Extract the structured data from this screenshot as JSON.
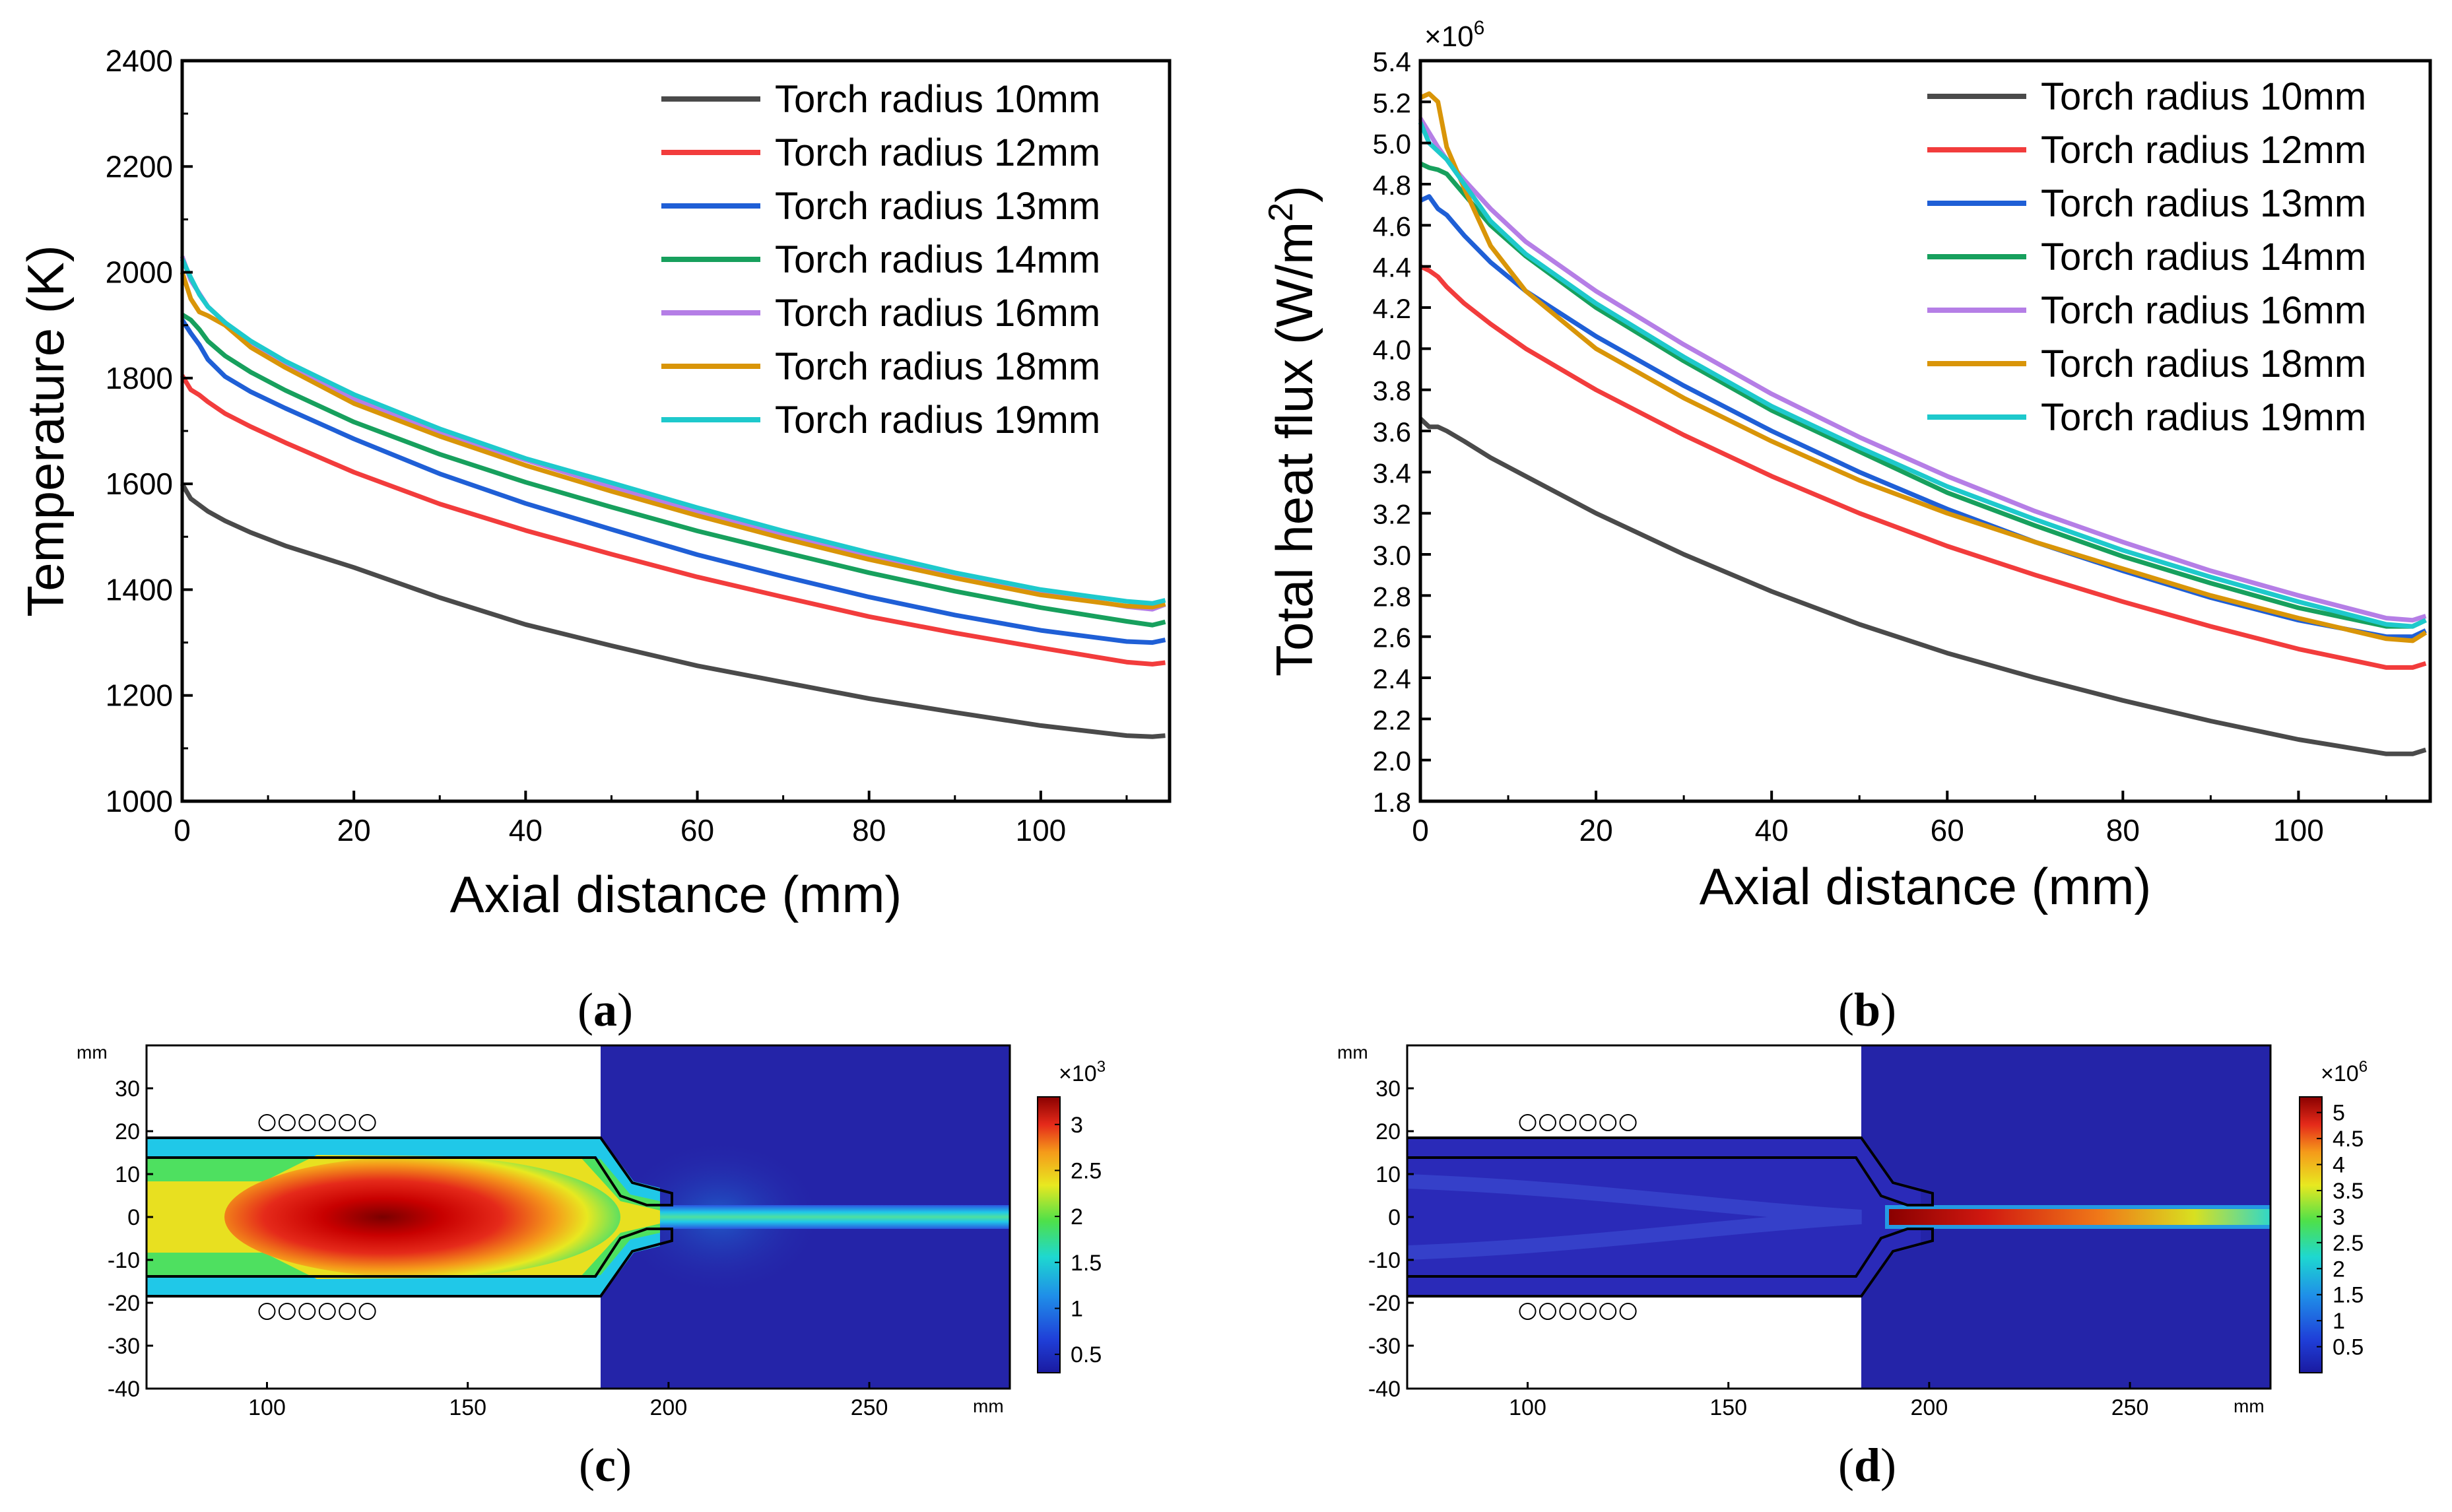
{
  "chart_data": [
    {
      "type": "line",
      "panel": "a",
      "xlabel": "Axial distance (mm)",
      "ylabel": "Temperature (K)",
      "xlim": [
        0,
        115
      ],
      "ylim": [
        1000,
        2400
      ],
      "xticks": [
        0,
        20,
        40,
        60,
        80,
        100
      ],
      "yticks": [
        1000,
        1200,
        1400,
        1600,
        1800,
        2000,
        2200,
        2400
      ],
      "x": [
        0,
        1,
        2,
        3,
        5,
        8,
        12,
        20,
        30,
        40,
        50,
        60,
        70,
        80,
        90,
        100,
        110,
        113,
        114.5
      ],
      "series": [
        {
          "name": "Torch radius 10mm",
          "color": "#4a4a4a",
          "values": [
            1600,
            1572,
            1560,
            1548,
            1530,
            1508,
            1483,
            1442,
            1385,
            1334,
            1294,
            1256,
            1225,
            1194,
            1168,
            1143,
            1124,
            1122,
            1124
          ]
        },
        {
          "name": "Torch radius 12mm",
          "color": "#f23c3c",
          "values": [
            1805,
            1778,
            1768,
            1755,
            1733,
            1708,
            1678,
            1622,
            1562,
            1512,
            1467,
            1424,
            1386,
            1349,
            1318,
            1290,
            1263,
            1259,
            1262
          ]
        },
        {
          "name": "Torch radius 13mm",
          "color": "#1f5fd6",
          "values": [
            1910,
            1885,
            1863,
            1835,
            1803,
            1774,
            1743,
            1685,
            1619,
            1563,
            1514,
            1466,
            1425,
            1386,
            1352,
            1323,
            1302,
            1300,
            1305
          ]
        },
        {
          "name": "Torch radius 14mm",
          "color": "#17a05d",
          "values": [
            1920,
            1910,
            1892,
            1870,
            1842,
            1811,
            1777,
            1717,
            1656,
            1603,
            1556,
            1511,
            1471,
            1432,
            1397,
            1366,
            1340,
            1333,
            1339
          ]
        },
        {
          "name": "Torch radius 16mm",
          "color": "#b57ee6",
          "values": [
            2030,
            1985,
            1960,
            1935,
            1905,
            1864,
            1823,
            1760,
            1697,
            1645,
            1595,
            1548,
            1505,
            1465,
            1428,
            1394,
            1368,
            1363,
            1372
          ]
        },
        {
          "name": "Torch radius 18mm",
          "color": "#d99508",
          "values": [
            2000,
            1950,
            1925,
            1918,
            1900,
            1858,
            1820,
            1752,
            1690,
            1635,
            1586,
            1540,
            1497,
            1457,
            1422,
            1390,
            1369,
            1367,
            1373
          ]
        },
        {
          "name": "Torch radius 19mm",
          "color": "#1ec9cc",
          "values": [
            2025,
            1990,
            1958,
            1935,
            1905,
            1870,
            1832,
            1769,
            1704,
            1648,
            1602,
            1555,
            1511,
            1470,
            1432,
            1400,
            1378,
            1374,
            1380
          ]
        }
      ]
    },
    {
      "type": "line",
      "panel": "b",
      "xlabel": "Axial distance (mm)",
      "ylabel": "Total heat flux (W/m",
      "ylabel_sup": "2",
      "ylabel_tail": ")",
      "multiplier": "×10",
      "multiplier_sup": "6",
      "xlim": [
        0,
        115
      ],
      "ylim": [
        1.8,
        5.4
      ],
      "xticks": [
        0,
        20,
        40,
        60,
        80,
        100
      ],
      "yticks": [
        "1.8",
        "2.0",
        "2.2",
        "2.4",
        "2.6",
        "2.8",
        "3.0",
        "3.2",
        "3.4",
        "3.6",
        "3.8",
        "4.0",
        "4.2",
        "4.4",
        "4.6",
        "4.8",
        "5.0",
        "5.2",
        "5.4"
      ],
      "x": [
        0,
        1,
        2,
        3,
        5,
        8,
        12,
        20,
        30,
        40,
        50,
        60,
        70,
        80,
        90,
        100,
        110,
        113,
        114.5
      ],
      "series": [
        {
          "name": "Torch radius 10mm",
          "color": "#4a4a4a",
          "values": [
            3.66,
            3.62,
            3.62,
            3.6,
            3.55,
            3.47,
            3.38,
            3.2,
            3.0,
            2.82,
            2.66,
            2.52,
            2.4,
            2.29,
            2.19,
            2.1,
            2.03,
            2.03,
            2.05
          ]
        },
        {
          "name": "Torch radius 12mm",
          "color": "#f23c3c",
          "values": [
            4.4,
            4.38,
            4.35,
            4.3,
            4.22,
            4.12,
            4.0,
            3.8,
            3.58,
            3.38,
            3.2,
            3.04,
            2.9,
            2.77,
            2.65,
            2.54,
            2.45,
            2.45,
            2.47
          ]
        },
        {
          "name": "Torch radius 13mm",
          "color": "#1f5fd6",
          "values": [
            4.72,
            4.74,
            4.68,
            4.65,
            4.55,
            4.42,
            4.28,
            4.06,
            3.82,
            3.6,
            3.4,
            3.22,
            3.06,
            2.92,
            2.79,
            2.68,
            2.6,
            2.6,
            2.63
          ]
        },
        {
          "name": "Torch radius 14mm",
          "color": "#17a05d",
          "values": [
            4.9,
            4.88,
            4.87,
            4.85,
            4.75,
            4.6,
            4.45,
            4.2,
            3.94,
            3.7,
            3.5,
            3.3,
            3.14,
            2.99,
            2.86,
            2.74,
            2.65,
            2.65,
            2.68
          ]
        },
        {
          "name": "Torch radius 16mm",
          "color": "#b57ee6",
          "values": [
            5.12,
            5.05,
            4.98,
            4.92,
            4.82,
            4.68,
            4.52,
            4.28,
            4.02,
            3.78,
            3.57,
            3.38,
            3.21,
            3.06,
            2.92,
            2.8,
            2.69,
            2.68,
            2.7
          ]
        },
        {
          "name": "Torch radius 18mm",
          "color": "#d99508",
          "values": [
            5.22,
            5.24,
            5.2,
            4.98,
            4.78,
            4.5,
            4.28,
            4.0,
            3.76,
            3.55,
            3.36,
            3.2,
            3.06,
            2.93,
            2.8,
            2.69,
            2.59,
            2.58,
            2.62
          ]
        },
        {
          "name": "Torch radius 19mm",
          "color": "#1ec9cc",
          "values": [
            5.1,
            5.0,
            4.96,
            4.92,
            4.8,
            4.62,
            4.46,
            4.22,
            3.96,
            3.72,
            3.52,
            3.33,
            3.17,
            3.02,
            2.89,
            2.77,
            2.66,
            2.65,
            2.68
          ]
        }
      ]
    },
    {
      "type": "heatmap",
      "panel": "c",
      "axis_unit": "mm",
      "xlim": [
        70,
        285
      ],
      "ylim": [
        -40,
        40
      ],
      "xticks": [
        100,
        150,
        200,
        250
      ],
      "yticks": [
        30,
        20,
        10,
        0,
        -10,
        -20,
        -30,
        -40
      ],
      "colorbar_multiplier": "×10",
      "colorbar_sup": "3",
      "colorbar_ticks": [
        "0.5",
        "1",
        "1.5",
        "2",
        "2.5",
        "3"
      ],
      "colorbar_range": [
        0.3,
        3.3
      ],
      "description_value": "temperature field, hot core near x=130 mm"
    },
    {
      "type": "heatmap",
      "panel": "d",
      "axis_unit": "mm",
      "xlim": [
        70,
        285
      ],
      "ylim": [
        -40,
        40
      ],
      "xticks": [
        100,
        150,
        200,
        250
      ],
      "yticks": [
        30,
        20,
        10,
        0,
        -10,
        -20,
        -30,
        -40
      ],
      "colorbar_multiplier": "×10",
      "colorbar_sup": "6",
      "colorbar_ticks": [
        "0.5",
        "1",
        "1.5",
        "2",
        "2.5",
        "3",
        "3.5",
        "4",
        "4.5",
        "5"
      ],
      "colorbar_range": [
        0,
        5.3
      ]
    }
  ],
  "panel_labels": {
    "a": "a",
    "b": "b",
    "c": "c",
    "d": "d"
  },
  "colors": {
    "axis": "#000000",
    "background": "#ffffff",
    "dark_blue": "#2424a8"
  }
}
